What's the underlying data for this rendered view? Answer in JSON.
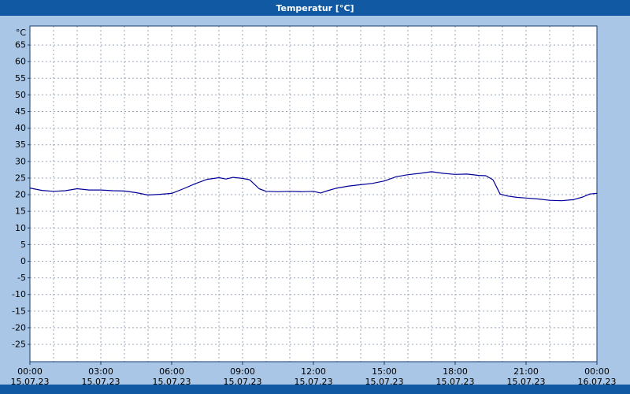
{
  "window": {
    "title": "Temperatur [°C]"
  },
  "chart_data": {
    "type": "line",
    "title": "Temperatur [°C]",
    "y_unit_label": "°C",
    "xlabel": "",
    "ylabel": "°C",
    "ylim": [
      -30.2,
      70.7
    ],
    "xlim": [
      0,
      24
    ],
    "grid": true,
    "legend": false,
    "yticks": [
      65,
      60,
      55,
      50,
      45,
      40,
      35,
      30,
      25,
      20,
      15,
      10,
      5,
      0,
      -5,
      -10,
      -15,
      -20,
      -25
    ],
    "xticks": [
      {
        "hour": 0,
        "time": "00:00",
        "date": "15.07.23"
      },
      {
        "hour": 3,
        "time": "03:00",
        "date": "15.07.23"
      },
      {
        "hour": 6,
        "time": "06:00",
        "date": "15.07.23"
      },
      {
        "hour": 9,
        "time": "09:00",
        "date": "15.07.23"
      },
      {
        "hour": 12,
        "time": "12:00",
        "date": "15.07.23"
      },
      {
        "hour": 15,
        "time": "15:00",
        "date": "15.07.23"
      },
      {
        "hour": 18,
        "time": "18:00",
        "date": "15.07.23"
      },
      {
        "hour": 21,
        "time": "21:00",
        "date": "15.07.23"
      },
      {
        "hour": 24,
        "time": "00:00",
        "date": "16.07.23"
      }
    ],
    "series": [
      {
        "name": "Temperatur",
        "x_hours": [
          0,
          0.5,
          1,
          1.5,
          2,
          2.5,
          3,
          3.5,
          4,
          4.5,
          5,
          5.5,
          6,
          6.5,
          7,
          7.5,
          8,
          8.3,
          8.6,
          9,
          9.3,
          9.7,
          10,
          10.5,
          11,
          11.5,
          12,
          12.3,
          12.6,
          13,
          13.5,
          14,
          14.5,
          15,
          15.5,
          16,
          16.5,
          17,
          17.5,
          18,
          18.5,
          19,
          19.3,
          19.6,
          19.9,
          20.2,
          20.6,
          21,
          21.5,
          22,
          22.5,
          23,
          23.4,
          23.7,
          24
        ],
        "values": [
          22,
          21.3,
          21,
          21.2,
          21.8,
          21.4,
          21.4,
          21.2,
          21.1,
          20.6,
          19.9,
          20.1,
          20.4,
          21.8,
          23.3,
          24.6,
          25.1,
          24.7,
          25.2,
          24.9,
          24.5,
          21.8,
          21,
          20.9,
          21,
          20.9,
          21,
          20.5,
          21.2,
          22,
          22.6,
          23,
          23.4,
          24.1,
          25.4,
          26,
          26.4,
          26.9,
          26.4,
          26.1,
          26.2,
          25.8,
          25.7,
          24.5,
          20.2,
          19.6,
          19.2,
          19,
          18.7,
          18.3,
          18.2,
          18.5,
          19.3,
          20.2,
          20.4
        ]
      }
    ],
    "colors": {
      "line": "#000099",
      "grid": "#9aa5b8",
      "plot_bg": "#ffffff",
      "plot_border": "#1a3c6e",
      "outer_bg": "#a9c6e7",
      "titlebar_bg": "#1159a2",
      "titlebar_text": "#ffffff",
      "axis_text": "#000000"
    }
  }
}
